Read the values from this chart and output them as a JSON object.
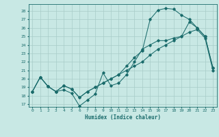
{
  "background_color": "#c8e8e4",
  "grid_color": "#a8ccc8",
  "line_color": "#1a6b6b",
  "xlabel": "Humidex (Indice chaleur)",
  "xlim": [
    -0.5,
    23.5
  ],
  "ylim": [
    16.7,
    28.8
  ],
  "xticks": [
    0,
    1,
    2,
    3,
    4,
    5,
    6,
    7,
    8,
    9,
    10,
    11,
    12,
    13,
    14,
    15,
    16,
    17,
    18,
    19,
    20,
    21,
    22,
    23
  ],
  "yticks": [
    17,
    18,
    19,
    20,
    21,
    22,
    23,
    24,
    25,
    26,
    27,
    28
  ],
  "line1_x": [
    0,
    1,
    2,
    3,
    4,
    5,
    6,
    7,
    8,
    9,
    10,
    11,
    12,
    13,
    14,
    15,
    16,
    17,
    18,
    19,
    20,
    21,
    22,
    23
  ],
  "line1_y": [
    18.5,
    20.2,
    19.1,
    18.5,
    18.7,
    18.3,
    16.8,
    17.5,
    18.2,
    20.7,
    19.2,
    19.5,
    20.5,
    22.0,
    23.5,
    24.0,
    24.5,
    24.5,
    24.8,
    25.0,
    26.7,
    26.0,
    25.0,
    21.3
  ],
  "line2_x": [
    0,
    1,
    2,
    3,
    4,
    5,
    6,
    7,
    8,
    9,
    10,
    11,
    12,
    13,
    14,
    15,
    16,
    17,
    18,
    19,
    20,
    21,
    22,
    23
  ],
  "line2_y": [
    18.5,
    20.2,
    19.1,
    18.5,
    19.2,
    18.8,
    17.8,
    18.5,
    19.0,
    19.5,
    20.0,
    20.5,
    21.0,
    21.5,
    22.0,
    22.8,
    23.5,
    24.0,
    24.5,
    25.0,
    25.5,
    25.8,
    24.8,
    21.0
  ],
  "line3_x": [
    0,
    1,
    2,
    3,
    4,
    5,
    6,
    7,
    8,
    9,
    10,
    11,
    12,
    13,
    14,
    15,
    16,
    17,
    18,
    19,
    20,
    21,
    22,
    23
  ],
  "line3_y": [
    18.5,
    20.2,
    19.1,
    18.5,
    19.2,
    18.8,
    17.8,
    18.5,
    19.0,
    19.5,
    20.0,
    20.5,
    21.5,
    22.5,
    23.3,
    27.0,
    28.1,
    28.3,
    28.2,
    27.5,
    27.0,
    26.0,
    25.0,
    21.3
  ]
}
